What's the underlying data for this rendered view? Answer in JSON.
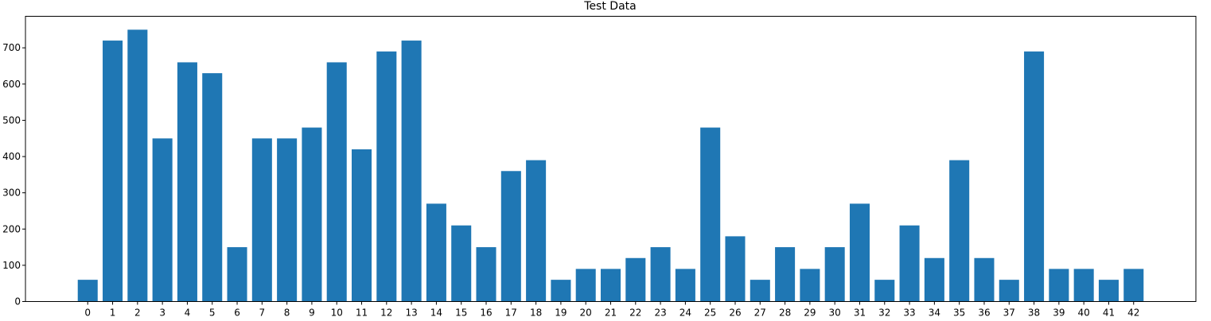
{
  "chart_data": {
    "type": "bar",
    "title": "Test Data",
    "xlabel": "",
    "ylabel": "",
    "categories": [
      "0",
      "1",
      "2",
      "3",
      "4",
      "5",
      "6",
      "7",
      "8",
      "9",
      "10",
      "11",
      "12",
      "13",
      "14",
      "15",
      "16",
      "17",
      "18",
      "19",
      "20",
      "21",
      "22",
      "23",
      "24",
      "25",
      "26",
      "27",
      "28",
      "29",
      "30",
      "31",
      "32",
      "33",
      "34",
      "35",
      "36",
      "37",
      "38",
      "39",
      "40",
      "41",
      "42"
    ],
    "values": [
      60,
      720,
      750,
      450,
      660,
      630,
      150,
      450,
      450,
      480,
      660,
      420,
      690,
      720,
      270,
      210,
      150,
      360,
      390,
      60,
      90,
      90,
      120,
      150,
      90,
      480,
      180,
      60,
      150,
      90,
      150,
      270,
      60,
      210,
      120,
      390,
      120,
      60,
      690,
      90,
      90,
      60,
      90
    ],
    "ylim": [
      0,
      787
    ],
    "yticks": [
      0,
      100,
      200,
      300,
      400,
      500,
      600,
      700
    ],
    "ytick_labels": [
      "0",
      "100",
      "200",
      "300",
      "400",
      "500",
      "600",
      "700"
    ],
    "xlim": [
      -2.5,
      44.5
    ],
    "grid": false,
    "bar_color": "#1f77b4"
  }
}
